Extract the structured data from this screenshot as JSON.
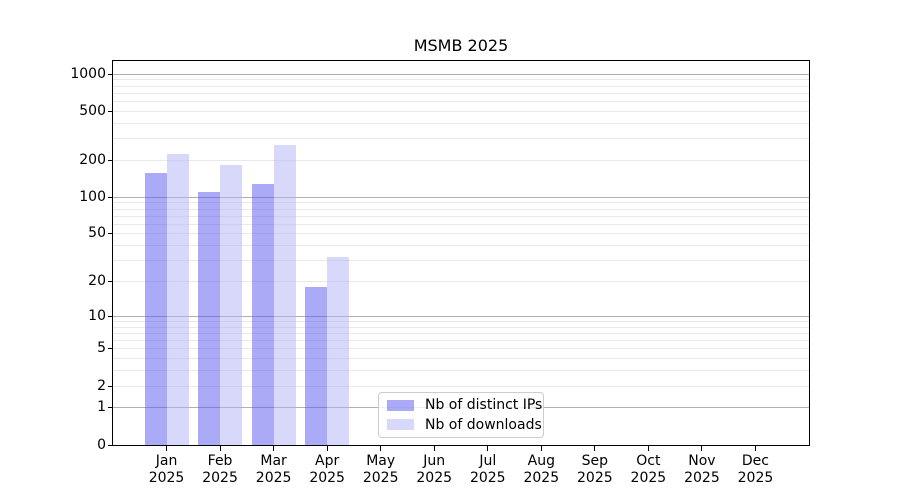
{
  "chart_data": {
    "type": "bar",
    "title": "MSMB 2025",
    "xlabel": "",
    "ylabel": "",
    "categories": [
      "Jan 2025",
      "Feb 2025",
      "Mar 2025",
      "Apr 2025",
      "May 2025",
      "Jun 2025",
      "Jul 2025",
      "Aug 2025",
      "Sep 2025",
      "Oct 2025",
      "Nov 2025",
      "Dec 2025"
    ],
    "series": [
      {
        "name": "Nb of distinct IPs",
        "color": "#5555ee",
        "alpha": 0.5,
        "values": [
          158,
          111,
          129,
          18,
          null,
          null,
          null,
          null,
          null,
          null,
          null,
          null
        ]
      },
      {
        "name": "Nb of downloads",
        "color": "#b1b1f7",
        "alpha": 0.5,
        "values": [
          227,
          184,
          269,
          32,
          null,
          null,
          null,
          null,
          null,
          null,
          null,
          null
        ]
      }
    ],
    "yscale": "log1p",
    "ylim": [
      0,
      1280
    ],
    "yticks": [
      0,
      1,
      2,
      5,
      10,
      20,
      50,
      100,
      200,
      500,
      1000
    ],
    "grid": {
      "major_values": [
        1,
        10,
        100,
        1000
      ],
      "minor_values": [
        2,
        3,
        4,
        5,
        6,
        7,
        8,
        9,
        20,
        30,
        40,
        50,
        60,
        70,
        80,
        90,
        200,
        300,
        400,
        500,
        600,
        700,
        800,
        900
      ]
    },
    "legend_position": "lower center"
  },
  "colors": {
    "axis": "#000000",
    "grid_major": "#b0b0b0",
    "grid_minor": "#e9e9e9",
    "legend_border": "#cccccc",
    "background": "#ffffff",
    "text": "#000000"
  }
}
